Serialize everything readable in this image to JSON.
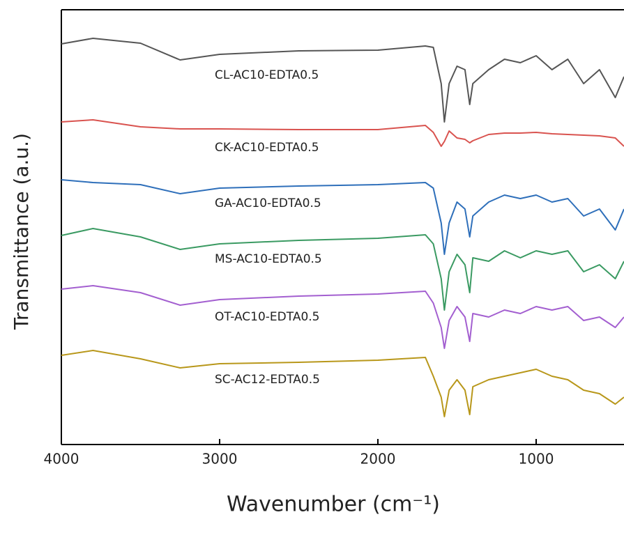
{
  "chart_data": {
    "type": "line",
    "x_label": "Wavenumber (cm⁻¹)",
    "y_label": "Transmittance (a.u.)",
    "x": [
      4000,
      3800,
      3500,
      3250,
      3000,
      2500,
      2000,
      1700,
      1650,
      1600,
      1580,
      1550,
      1500,
      1450,
      1420,
      1400,
      1300,
      1200,
      1100,
      1000,
      900,
      800,
      700,
      600,
      500,
      445
    ],
    "xlim": [
      4000,
      445
    ],
    "xticks": [
      4000,
      3000,
      2000,
      1000
    ],
    "ylim": [
      0,
      624
    ],
    "series": [
      {
        "name": "CL-AC10-EDTA0.5",
        "color": "#555555",
        "values": [
          575,
          583,
          576,
          552,
          560,
          565,
          566,
          572,
          570,
          518,
          463,
          518,
          543,
          538,
          488,
          518,
          538,
          553,
          548,
          558,
          538,
          553,
          518,
          538,
          498,
          528
        ]
      },
      {
        "name": "CK-AC10-EDTA0.5",
        "color": "#d9534f",
        "values": [
          463,
          466,
          456,
          453,
          453,
          452,
          452,
          458,
          448,
          428,
          435,
          450,
          440,
          438,
          433,
          436,
          445,
          447,
          447,
          448,
          446,
          445,
          444,
          443,
          440,
          428
        ]
      },
      {
        "name": "GA-AC10-EDTA0.5",
        "color": "#2e6fba",
        "values": [
          380,
          376,
          373,
          360,
          368,
          371,
          373,
          376,
          368,
          318,
          273,
          318,
          348,
          338,
          298,
          328,
          348,
          358,
          353,
          358,
          348,
          353,
          328,
          338,
          308,
          338
        ]
      },
      {
        "name": "MS-AC10-EDTA0.5",
        "color": "#3a9a62",
        "values": [
          300,
          310,
          298,
          280,
          288,
          293,
          296,
          301,
          288,
          238,
          193,
          248,
          273,
          258,
          218,
          268,
          263,
          278,
          268,
          278,
          273,
          278,
          248,
          258,
          238,
          263
        ]
      },
      {
        "name": "OT-AC10-EDTA0.5",
        "color": "#a35fd0",
        "values": [
          223,
          228,
          218,
          200,
          208,
          213,
          216,
          220,
          203,
          168,
          138,
          178,
          198,
          183,
          148,
          188,
          183,
          193,
          188,
          198,
          193,
          198,
          178,
          183,
          168,
          183
        ]
      },
      {
        "name": "SC-AC12-EDTA0.5",
        "color": "#b8971a",
        "values": [
          128,
          135,
          123,
          110,
          116,
          118,
          121,
          125,
          98,
          68,
          40,
          78,
          93,
          78,
          43,
          83,
          93,
          98,
          103,
          108,
          98,
          93,
          78,
          73,
          58,
          68
        ]
      }
    ]
  }
}
